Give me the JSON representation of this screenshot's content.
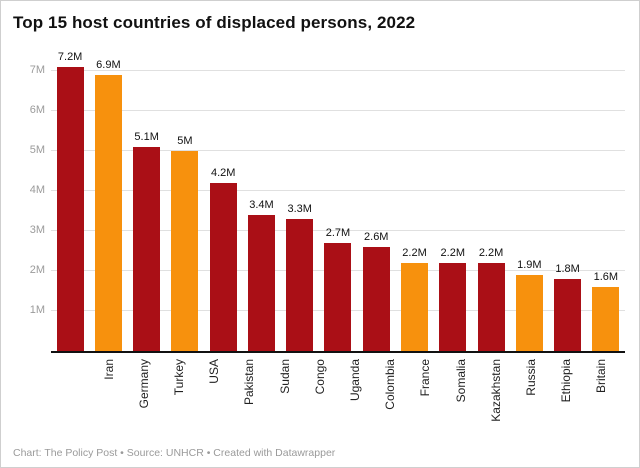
{
  "title": "Top 15 host countries of displaced persons, 2022",
  "footer": "Chart: The Policy Post • Source: UNHCR • Created with Datawrapper",
  "chart_data": {
    "type": "bar",
    "title": "Top 15 host countries of displaced persons, 2022",
    "categories": [
      "Iran",
      "Germany",
      "Turkey",
      "USA",
      "Pakistan",
      "Sudan",
      "Congo",
      "Uganda",
      "Colombia",
      "France",
      "Somalia",
      "Kazakhstan",
      "Russia",
      "Ethiopia",
      "Britain"
    ],
    "values": [
      7.2,
      6.9,
      5.1,
      5.0,
      4.2,
      3.4,
      3.3,
      2.7,
      2.6,
      2.2,
      2.2,
      2.2,
      1.9,
      1.8,
      1.6
    ],
    "labels": [
      "7.2M",
      "6.9M",
      "5.1M",
      "5M",
      "4.2M",
      "3.4M",
      "3.3M",
      "2.7M",
      "2.6M",
      "2.2M",
      "2.2M",
      "2.2M",
      "1.9M",
      "1.8M",
      "1.6M"
    ],
    "bar_colors": [
      "red",
      "orange",
      "red",
      "orange",
      "red",
      "red",
      "red",
      "red",
      "red",
      "orange",
      "red",
      "red",
      "orange",
      "red",
      "orange"
    ],
    "palette": {
      "red": "#aa0f16",
      "orange": "#f7910d"
    },
    "yticks": [
      "1M",
      "2M",
      "3M",
      "4M",
      "5M",
      "6M",
      "7M"
    ],
    "ylim": [
      0,
      7.5
    ],
    "xlabel": "",
    "ylabel": "",
    "grid": "horizontal",
    "legend": "none",
    "unit": "millions of persons"
  }
}
